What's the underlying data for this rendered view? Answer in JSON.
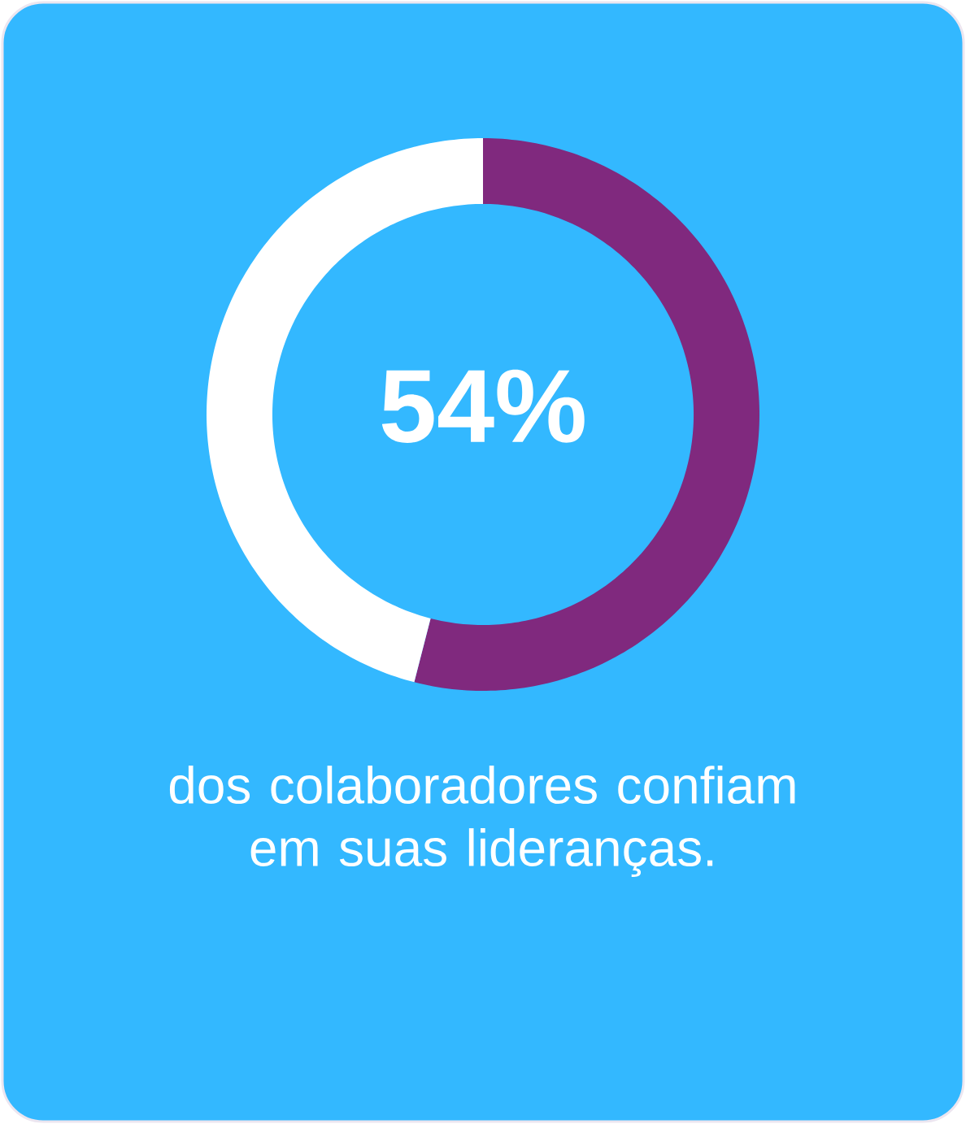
{
  "chart_data": {
    "type": "donut",
    "categories": [
      null,
      null
    ],
    "values": [
      54,
      46
    ],
    "colors": [
      "#80297e",
      "#ffffff"
    ],
    "value_labels": [
      "54%",
      null
    ],
    "annotations": [
      "dos colaboradores confiam em suas lideranças."
    ]
  }
}
